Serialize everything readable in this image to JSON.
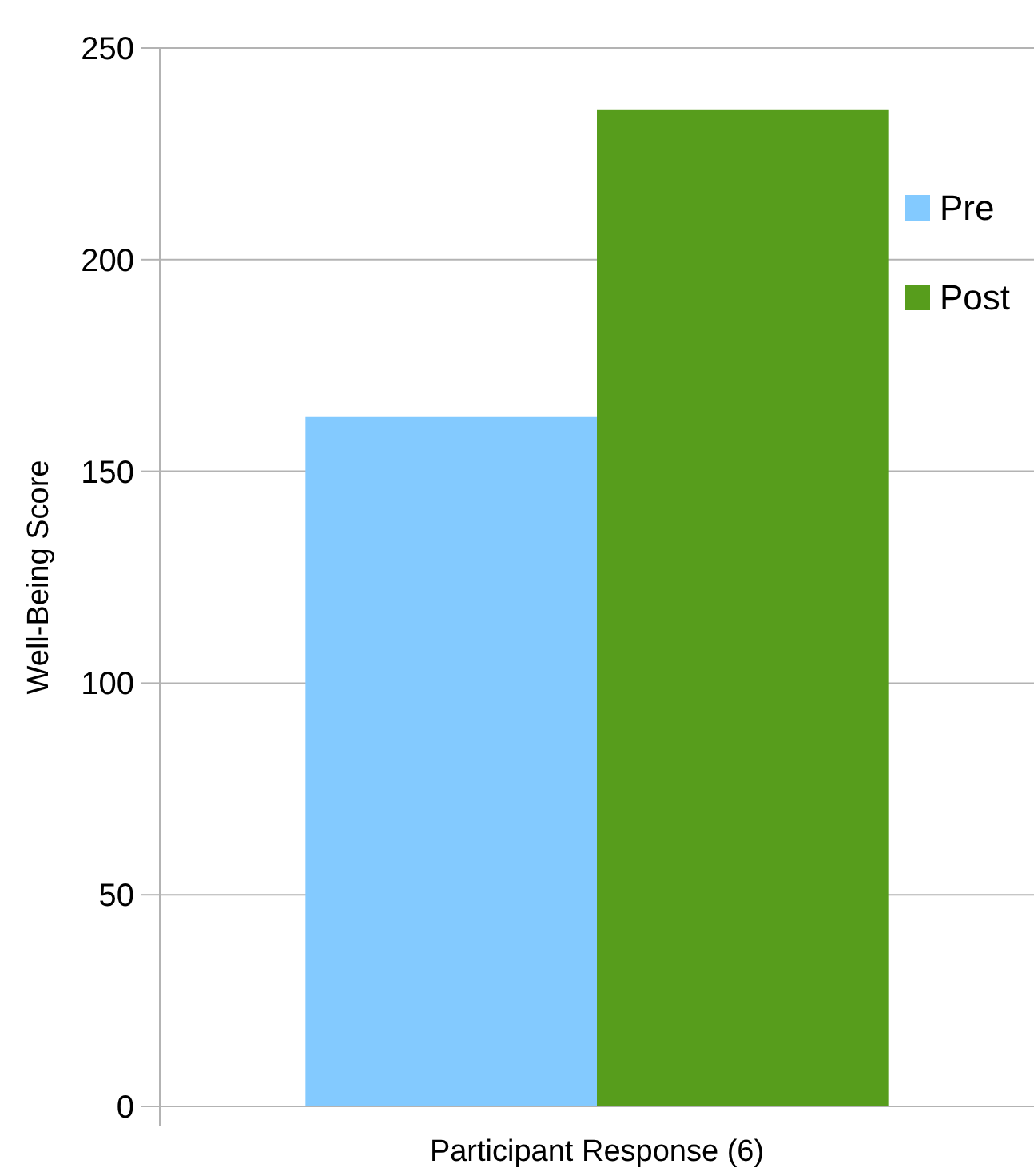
{
  "chart_data": {
    "type": "bar",
    "ylabel": "Well-Being Score",
    "categories": [
      "Participant Response (6)"
    ],
    "series": [
      {
        "name": "Pre",
        "color": "#83caff",
        "values": [
          163
        ]
      },
      {
        "name": "Post",
        "color": "#579d1c",
        "values": [
          235.5
        ]
      }
    ],
    "ylim": [
      0,
      250
    ],
    "yticks": [
      0,
      50,
      100,
      150,
      200,
      250
    ],
    "grid": "y",
    "legend": "right"
  }
}
